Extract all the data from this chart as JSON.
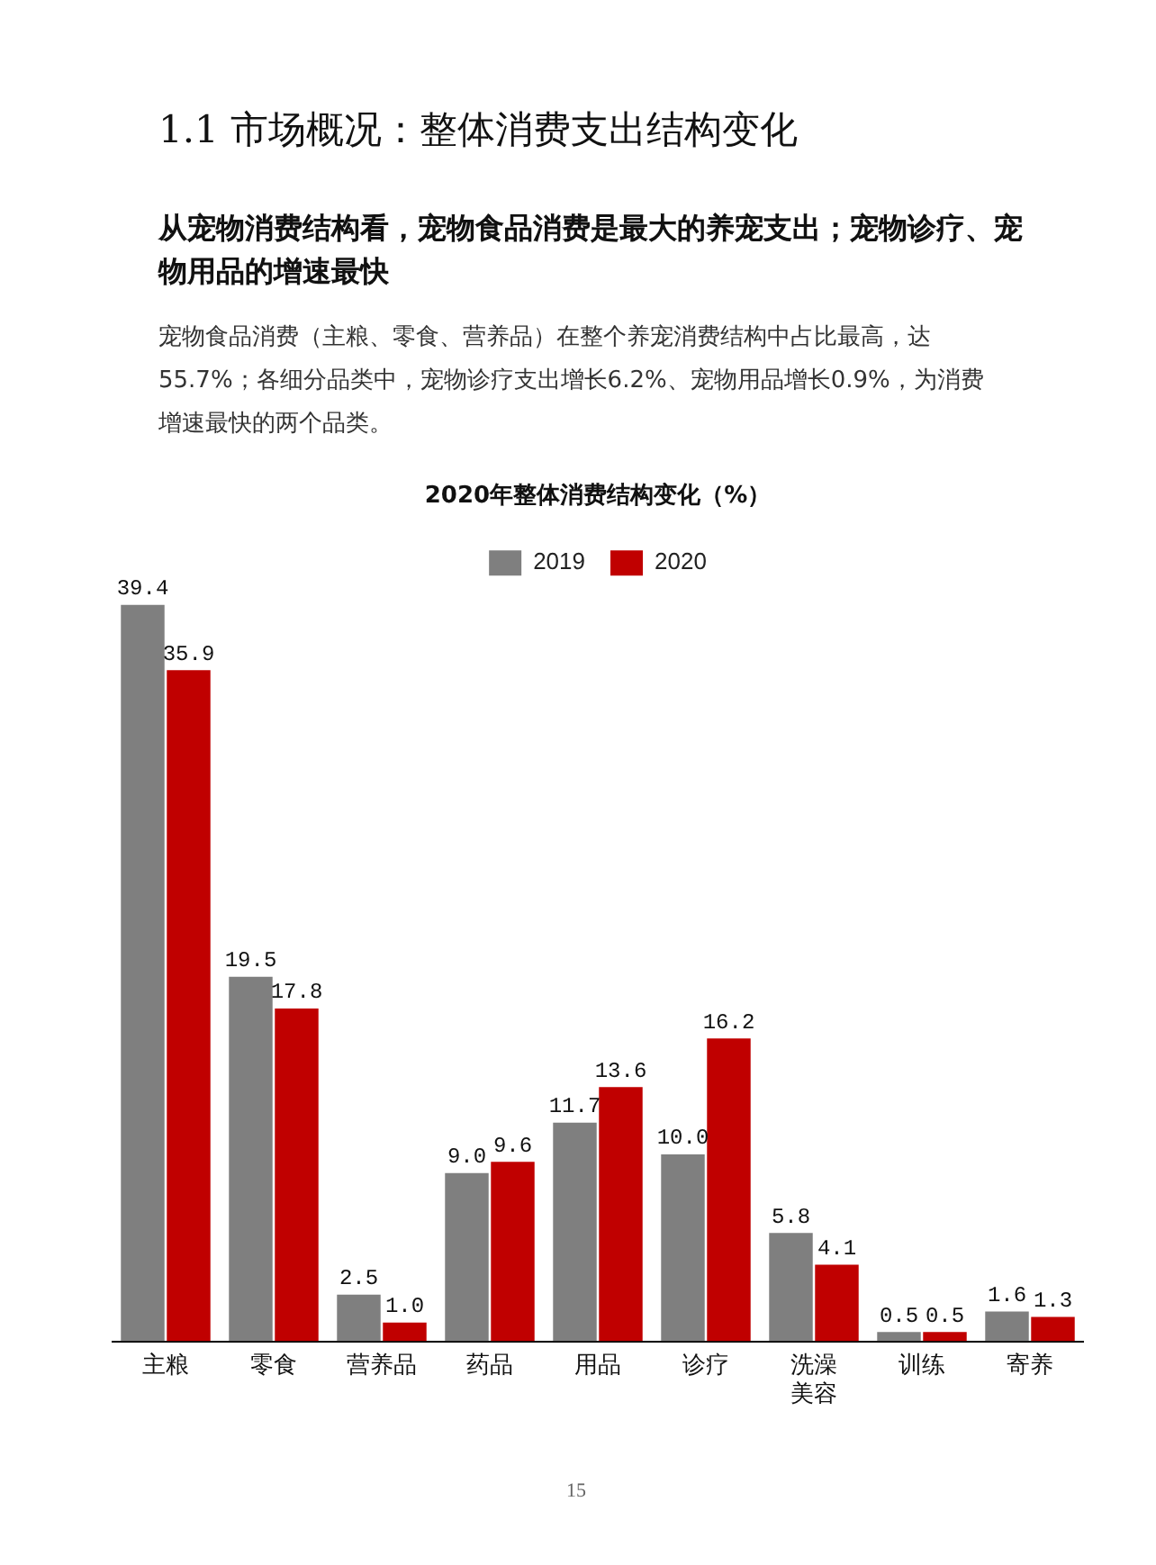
{
  "chart_data": {
    "type": "bar",
    "title": "2020年整体消费结构变化（%）",
    "annotations": [
      "1.1 市场概况：整体消费支出结构变化",
      "从宠物消费结构看，宠物食品消费是最大的养宠支出；宠物诊疗、宠物用品的增速最快",
      "宠物食品消费（主粮、零食、营养品）在整个养宠消费结构中占比最高，达55.7%；各细分品类中，宠物诊疗支出增长6.2%、宠物用品增长0.9%，为消费增速最快的两个品类。",
      "15"
    ],
    "categories": [
      "主粮",
      "零食",
      "营养品",
      "药品",
      "用品",
      "诊疗",
      "洗澡美容",
      "训练",
      "寄养"
    ],
    "series": [
      {
        "name": "2019",
        "color": "#7f7f7f",
        "values": [
          39.4,
          19.5,
          2.5,
          9,
          11.7,
          10,
          5.8,
          0.5,
          1.6
        ],
        "value_labels": [
          "39.4",
          "19.5",
          "2.5",
          "9.0",
          "11.7",
          "10.0",
          "5.8",
          "0.5",
          "1.6"
        ]
      },
      {
        "name": "2020",
        "color": "#c00000",
        "values": [
          35.9,
          17.8,
          1,
          9.6,
          13.6,
          16.2,
          4.1,
          0.5,
          1.3
        ],
        "value_labels": [
          "35.9",
          "17.8",
          "1.0",
          "9.6",
          "13.6",
          "16.2",
          "4.1",
          "0.5",
          "1.3"
        ]
      }
    ],
    "grid": false,
    "legend": "top"
  }
}
